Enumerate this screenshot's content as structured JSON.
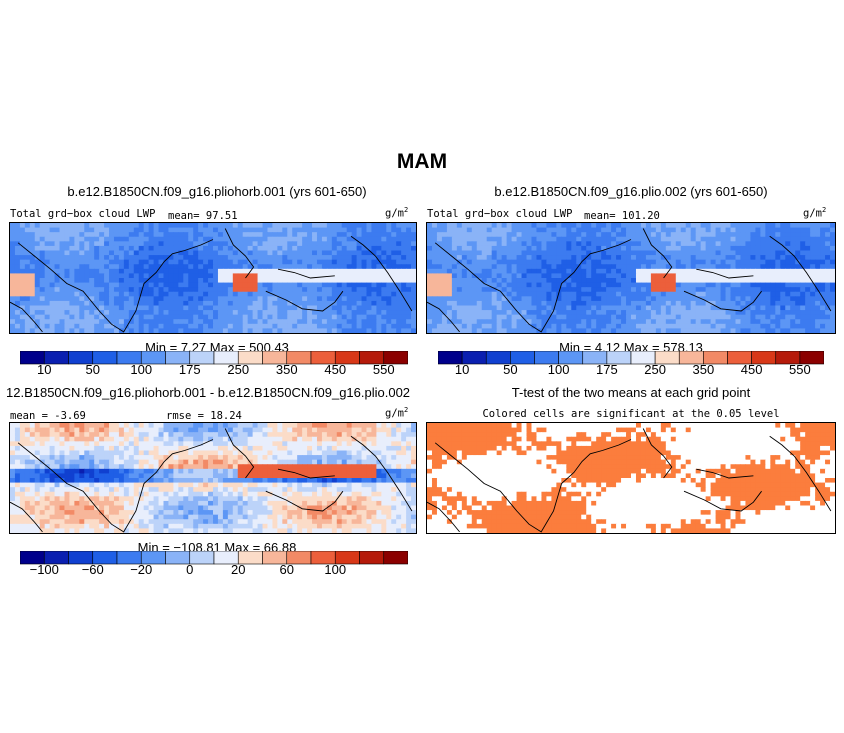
{
  "figure_title": "MAM",
  "panels": [
    {
      "title": "b.e12.B1850CN.f09_g16.pliohorb.001 (yrs 601-650)",
      "left_label": "Total grd−box cloud LWP",
      "mean_label": "mean=  97.51",
      "unit_base": "g/m",
      "unit_exp": "2",
      "minmax": "Min =   7.27 Max = 500.43"
    },
    {
      "title": "b.e12.B1850CN.f09_g16.plio.002 (yrs 601-650)",
      "left_label": "Total grd−box cloud LWP",
      "mean_label": "mean= 101.20",
      "unit_base": "g/m",
      "unit_exp": "2",
      "minmax": "Min =   4.12 Max = 578.13"
    },
    {
      "title": "12.B1850CN.f09_g16.pliohorb.001 - b.e12.B1850CN.f09_g16.plio.002",
      "left_label": "mean =  -3.69",
      "mean_label": "rmse =  18.24",
      "unit_base": "g/m",
      "unit_exp": "2",
      "minmax": "Min = −108.81 Max =  66.88"
    },
    {
      "title": "T-test of the two means at each grid point",
      "subtitle": "Colored cells are significant at the 0.05 level"
    }
  ],
  "colors": {
    "absolute_scale": [
      "#00008b",
      "#0a1fb0",
      "#1040d0",
      "#1f5fe6",
      "#3c7bf0",
      "#5c96f5",
      "#8ab3f7",
      "#bcd3f9",
      "#e8eefc",
      "#fbdcc8",
      "#f7b69a",
      "#f28a66",
      "#ec5f3b",
      "#d83818",
      "#b51a0a",
      "#8b0000"
    ],
    "difference_scale": [
      "#00008b",
      "#0a1fb0",
      "#1040d0",
      "#1f5fe6",
      "#3c7bf0",
      "#5c96f5",
      "#8ab3f7",
      "#bcd3f9",
      "#e8eefc",
      "#fbdcc8",
      "#f7b69a",
      "#f28a66",
      "#ec5f3b",
      "#d83818",
      "#b51a0a",
      "#8b0000"
    ],
    "significance": "#fb7d3d"
  },
  "chart_data": [
    {
      "type": "heatmap",
      "title": "b.e12.B1850CN.f09_g16.pliohorb.001 (yrs 601-650)",
      "variable": "Total grd-box cloud LWP",
      "units": "g/m2",
      "mean": 97.51,
      "min": 7.27,
      "max": 500.43,
      "colorbar_levels": [
        10,
        25,
        50,
        75,
        100,
        125,
        150,
        175,
        200,
        250,
        300,
        350,
        400,
        450,
        500,
        550
      ],
      "colorbar_tick_labels": [
        "10",
        "50",
        "100",
        "175",
        "250",
        "350",
        "450",
        "550"
      ]
    },
    {
      "type": "heatmap",
      "title": "b.e12.B1850CN.f09_g16.plio.002 (yrs 601-650)",
      "variable": "Total grd-box cloud LWP",
      "units": "g/m2",
      "mean": 101.2,
      "min": 4.12,
      "max": 578.13,
      "colorbar_levels": [
        10,
        25,
        50,
        75,
        100,
        125,
        150,
        175,
        200,
        250,
        300,
        350,
        400,
        450,
        500,
        550
      ],
      "colorbar_tick_labels": [
        "10",
        "50",
        "100",
        "175",
        "250",
        "350",
        "450",
        "550"
      ]
    },
    {
      "type": "heatmap",
      "title": "12.B1850CN.f09_g16.pliohorb.001 - b.e12.B1850CN.f09_g16.plio.002",
      "units": "g/m2",
      "mean": -3.69,
      "rmse": 18.24,
      "min": -108.81,
      "max": 66.88,
      "colorbar_levels": [
        -120,
        -100,
        -80,
        -60,
        -40,
        -20,
        -10,
        0,
        10,
        20,
        40,
        60,
        80,
        100,
        120
      ],
      "colorbar_tick_labels": [
        "−100",
        "−60",
        "−20",
        "0",
        "20",
        "60",
        "100"
      ]
    },
    {
      "type": "heatmap",
      "title": "T-test of the two means at each grid point",
      "subtitle": "Colored cells are significant at the 0.05 level",
      "significance_level": 0.05
    }
  ]
}
